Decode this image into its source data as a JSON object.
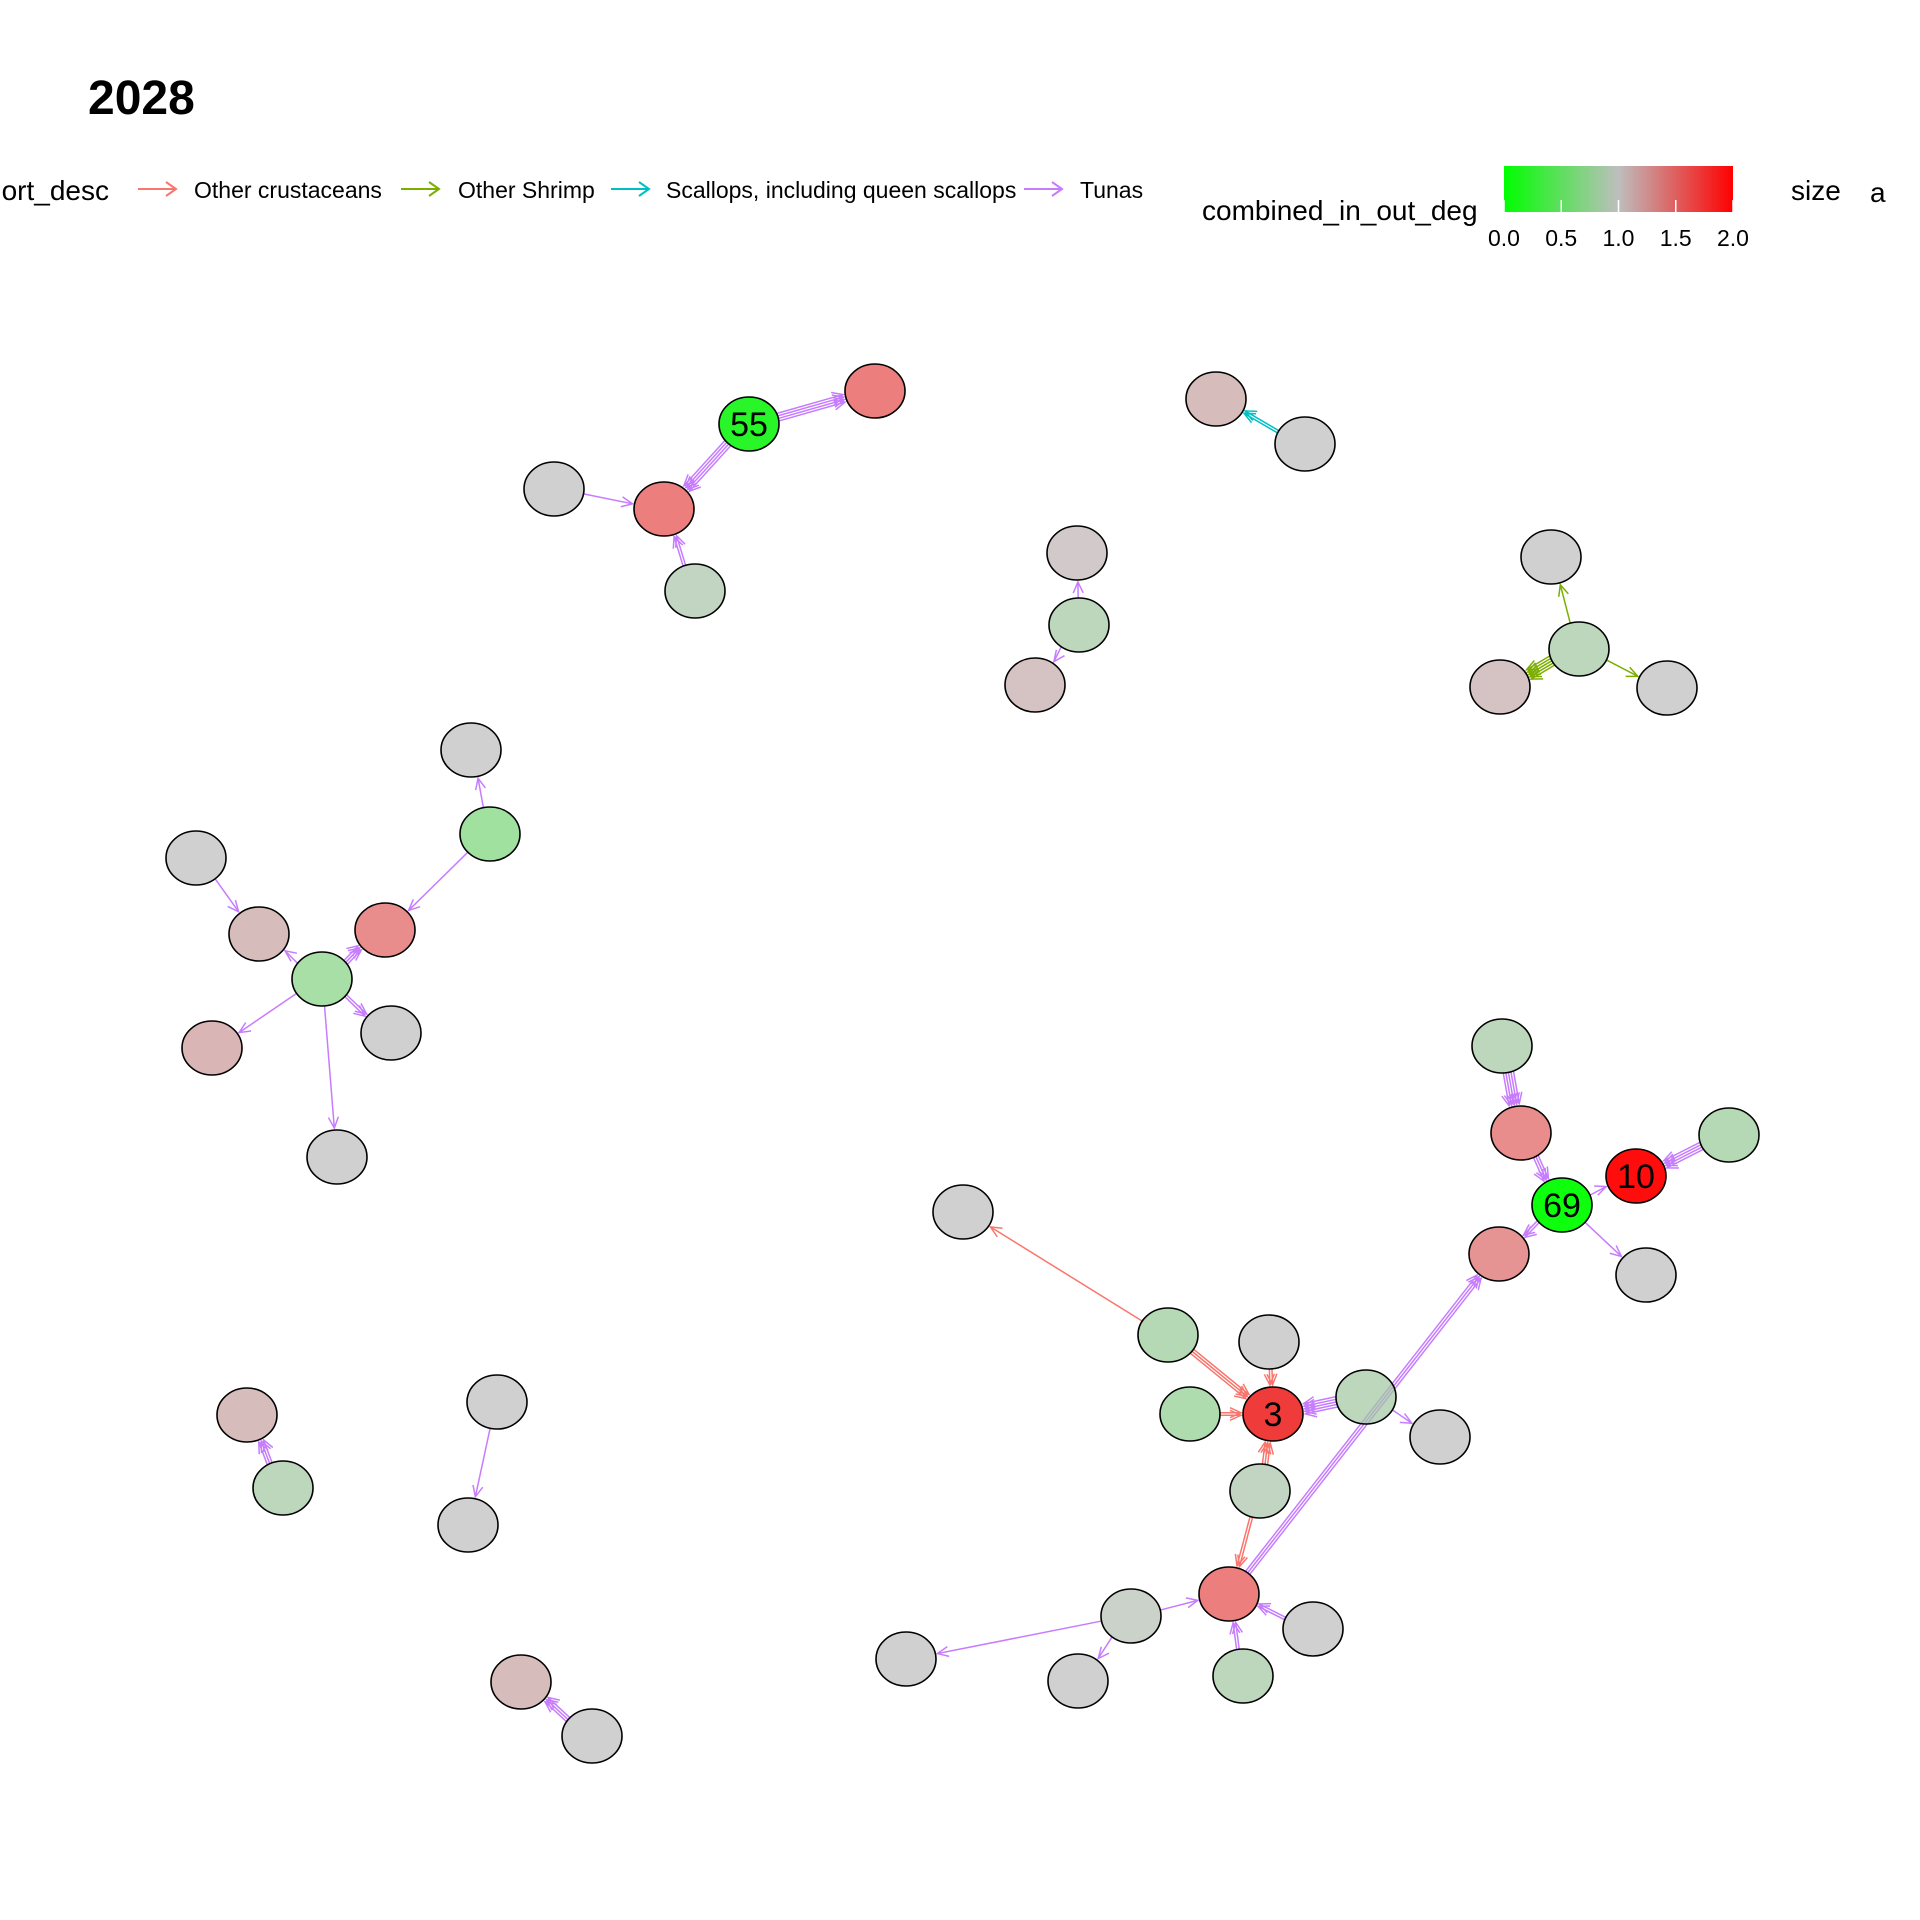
{
  "title": "2028",
  "legend": {
    "edge_title": "short_desc",
    "edge_items": [
      {
        "label": "Other crustaceans",
        "color": "#F8766D"
      },
      {
        "label": "Other Shrimp",
        "color": "#7CAE00"
      },
      {
        "label": "Scallops, including queen scallops",
        "color": "#00BFC4"
      },
      {
        "label": "Tunas",
        "color": "#C77CFF"
      }
    ],
    "colorbar": {
      "title": "combined_in_out_deg",
      "ticks": [
        "0.0",
        "0.5",
        "1.0",
        "1.5",
        "2.0"
      ],
      "low_color": "#00FF00",
      "mid_color": "#BEBEBE",
      "high_color": "#FF0000"
    },
    "size_title": "size",
    "size_item": "a"
  },
  "nodes": [
    {
      "id": "n55",
      "label": "55",
      "value": 0.15
    },
    {
      "id": "a1",
      "value": 1.6
    },
    {
      "id": "a2",
      "value": 1.0
    },
    {
      "id": "a3",
      "value": 1.6
    },
    {
      "id": "a4",
      "value": 0.9
    },
    {
      "id": "b1",
      "value": 1.15
    },
    {
      "id": "b2",
      "value": 1.0
    },
    {
      "id": "c1",
      "value": 1.05
    },
    {
      "id": "c2",
      "value": 0.85
    },
    {
      "id": "c3",
      "value": 1.1
    },
    {
      "id": "d1",
      "value": 1.0
    },
    {
      "id": "d2",
      "value": 0.85
    },
    {
      "id": "d3",
      "value": 1.1
    },
    {
      "id": "d4",
      "value": 1.0
    },
    {
      "id": "e1",
      "value": 1.0
    },
    {
      "id": "e2",
      "value": 0.65
    },
    {
      "id": "e3",
      "value": 1.0
    },
    {
      "id": "e4",
      "value": 1.15
    },
    {
      "id": "e5",
      "value": 1.5
    },
    {
      "id": "e6",
      "value": 0.7
    },
    {
      "id": "e7",
      "value": 1.2
    },
    {
      "id": "e8",
      "value": 1.0
    },
    {
      "id": "e9",
      "value": 1.0
    },
    {
      "id": "f1",
      "value": 0.85
    },
    {
      "id": "f2",
      "value": 1.5
    },
    {
      "id": "f3",
      "value": 0.8
    },
    {
      "id": "n10",
      "label": "10",
      "value": 2.0
    },
    {
      "id": "n69",
      "label": "69",
      "value": 0.0
    },
    {
      "id": "f4",
      "value": 1.45
    },
    {
      "id": "f5",
      "value": 1.0
    },
    {
      "id": "g1",
      "value": 1.0
    },
    {
      "id": "g2",
      "value": 0.8
    },
    {
      "id": "g3",
      "value": 1.0
    },
    {
      "id": "g4",
      "value": 0.75
    },
    {
      "id": "n3",
      "label": "3",
      "value": 1.75
    },
    {
      "id": "g5",
      "value": 0.85
    },
    {
      "id": "g6",
      "value": 1.0
    },
    {
      "id": "g7",
      "value": 0.9
    },
    {
      "id": "g8",
      "value": 1.6
    },
    {
      "id": "g9",
      "value": 0.95
    },
    {
      "id": "g10",
      "value": 1.0
    },
    {
      "id": "g11",
      "value": 1.0
    },
    {
      "id": "g12",
      "value": 1.0
    },
    {
      "id": "g13",
      "value": 0.85
    },
    {
      "id": "h1",
      "value": 1.15
    },
    {
      "id": "h2",
      "value": 0.85
    },
    {
      "id": "h3",
      "value": 1.0
    },
    {
      "id": "h4",
      "value": 1.0
    },
    {
      "id": "h5",
      "value": 1.15
    },
    {
      "id": "h6",
      "value": 1.0
    }
  ],
  "edges": [
    {
      "from": "n55",
      "to": "a1",
      "category": "Tunas",
      "weight": 4
    },
    {
      "from": "n55",
      "to": "a3",
      "category": "Tunas",
      "weight": 4
    },
    {
      "from": "a2",
      "to": "a3",
      "category": "Tunas",
      "weight": 1
    },
    {
      "from": "a4",
      "to": "a3",
      "category": "Tunas",
      "weight": 2
    },
    {
      "from": "b2",
      "to": "b1",
      "category": "Scallops, including queen scallops",
      "weight": 2
    },
    {
      "from": "c2",
      "to": "c1",
      "category": "Tunas",
      "weight": 1
    },
    {
      "from": "c2",
      "to": "c3",
      "category": "Tunas",
      "weight": 1
    },
    {
      "from": "d2",
      "to": "d1",
      "category": "Other Shrimp",
      "weight": 1
    },
    {
      "from": "d2",
      "to": "d3",
      "category": "Other Shrimp",
      "weight": 5
    },
    {
      "from": "d2",
      "to": "d4",
      "category": "Other Shrimp",
      "weight": 1
    },
    {
      "from": "e2",
      "to": "e1",
      "category": "Tunas",
      "weight": 1
    },
    {
      "from": "e2",
      "to": "e5",
      "category": "Tunas",
      "weight": 1
    },
    {
      "from": "e3",
      "to": "e4",
      "category": "Tunas",
      "weight": 1
    },
    {
      "from": "e6",
      "to": "e5",
      "category": "Tunas",
      "weight": 3
    },
    {
      "from": "e6",
      "to": "e4",
      "category": "Tunas",
      "weight": 1
    },
    {
      "from": "e6",
      "to": "e8",
      "category": "Tunas",
      "weight": 2
    },
    {
      "from": "e6",
      "to": "e7",
      "category": "Tunas",
      "weight": 1
    },
    {
      "from": "e6",
      "to": "e9",
      "category": "Tunas",
      "weight": 1
    },
    {
      "from": "f1",
      "to": "f2",
      "category": "Tunas",
      "weight": 5
    },
    {
      "from": "f2",
      "to": "n69",
      "category": "Tunas",
      "weight": 3
    },
    {
      "from": "f3",
      "to": "n10",
      "category": "Tunas",
      "weight": 4
    },
    {
      "from": "n69",
      "to": "n10",
      "category": "Tunas",
      "weight": 1
    },
    {
      "from": "n69",
      "to": "f5",
      "category": "Tunas",
      "weight": 1
    },
    {
      "from": "n69",
      "to": "f4",
      "category": "Tunas",
      "weight": 2
    },
    {
      "from": "g8",
      "to": "f4",
      "category": "Tunas",
      "weight": 3
    },
    {
      "from": "g2",
      "to": "g1",
      "category": "Other crustaceans",
      "weight": 1
    },
    {
      "from": "g2",
      "to": "n3",
      "category": "Other crustaceans",
      "weight": 3
    },
    {
      "from": "g3",
      "to": "n3",
      "category": "Other crustaceans",
      "weight": 2
    },
    {
      "from": "g4",
      "to": "n3",
      "category": "Other crustaceans",
      "weight": 2
    },
    {
      "from": "g5",
      "to": "n3",
      "category": "Tunas",
      "weight": 5
    },
    {
      "from": "g5",
      "to": "g6",
      "category": "Tunas",
      "weight": 1
    },
    {
      "from": "g7",
      "to": "n3",
      "category": "Other crustaceans",
      "weight": 3
    },
    {
      "from": "g7",
      "to": "g8",
      "category": "Other crustaceans",
      "weight": 2
    },
    {
      "from": "g9",
      "to": "g8",
      "category": "Tunas",
      "weight": 1
    },
    {
      "from": "g9",
      "to": "g10",
      "category": "Tunas",
      "weight": 1
    },
    {
      "from": "g9",
      "to": "g11",
      "category": "Tunas",
      "weight": 1
    },
    {
      "from": "g12",
      "to": "g8",
      "category": "Tunas",
      "weight": 2
    },
    {
      "from": "g13",
      "to": "g8",
      "category": "Tunas",
      "weight": 2
    },
    {
      "from": "h2",
      "to": "h1",
      "category": "Tunas",
      "weight": 3
    },
    {
      "from": "h3",
      "to": "h4",
      "category": "Tunas",
      "weight": 1
    },
    {
      "from": "h6",
      "to": "h5",
      "category": "Tunas",
      "weight": 3
    }
  ]
}
